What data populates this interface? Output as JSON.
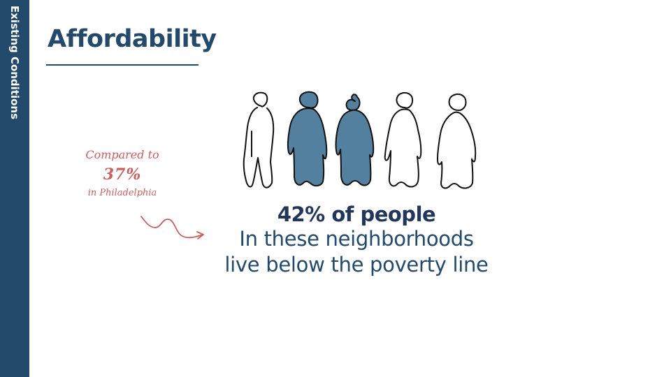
{
  "sidebar": {
    "label": "Existing Conditions"
  },
  "header": {
    "title": "Affordability"
  },
  "callout": {
    "line1": "Compared to",
    "percent": "37%",
    "line3": "in Philadelphia",
    "color": "#c9605f"
  },
  "stat": {
    "headline": "42% of people",
    "line2": "In these neighborhoods",
    "line3": "live below the poverty line"
  },
  "figures": {
    "count": 5,
    "filled": 2,
    "fill_color": "#53809f",
    "icon": "person-icon"
  },
  "colors": {
    "sidebar": "#23496b",
    "title": "#23496b"
  }
}
